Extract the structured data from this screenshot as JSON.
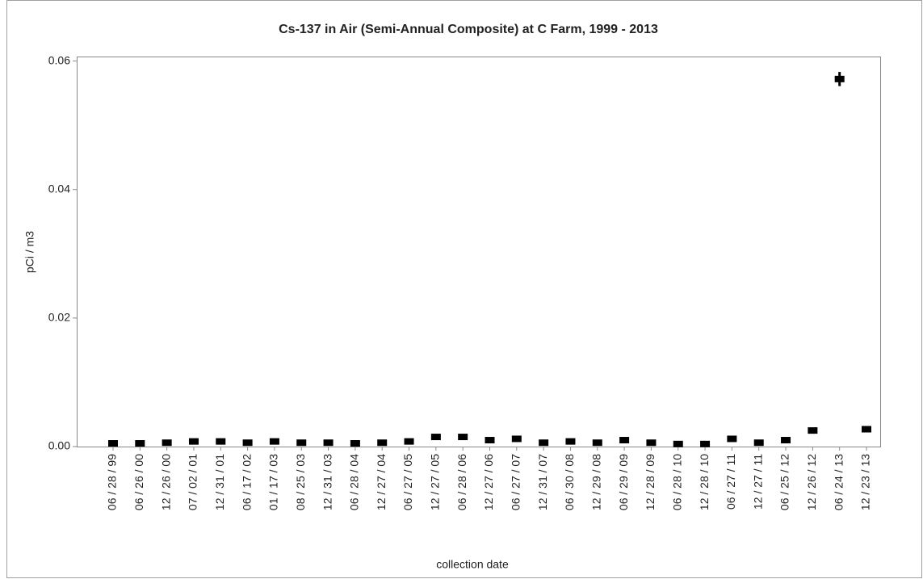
{
  "chart_data": {
    "type": "scatter",
    "title": "Cs-137 in Air (Semi-Annual Composite) at C Farm, 1999 - 2013",
    "x_label": "collection date",
    "y_label": "pCi / m3",
    "categories": [
      "06 / 28 / 99",
      "06 / 26 / 00",
      "12 / 26 / 00",
      "07 / 02 / 01",
      "12 / 31 / 01",
      "06 / 17 / 02",
      "01 / 17 / 03",
      "08 / 25 / 03",
      "12 / 31 / 03",
      "06 / 28 / 04",
      "12 / 27 / 04",
      "06 / 27 / 05",
      "12 / 27 / 05",
      "06 / 28 / 06",
      "12 / 27 / 06",
      "06 / 27 / 07",
      "12 / 31 / 07",
      "06 / 30 / 08",
      "12 / 29 / 08",
      "06 / 29 / 09",
      "12 / 28 / 09",
      "06 / 28 / 10",
      "12 / 28 / 10",
      "06 / 27 / 11",
      "12 / 27 / 11",
      "06 / 25 / 12",
      "12 / 26 / 12",
      "06 / 24 / 13",
      "12 / 23 / 13"
    ],
    "values": [
      0.0005,
      0.0005,
      0.0006,
      0.0008,
      0.0008,
      0.0006,
      0.0008,
      0.0006,
      0.0006,
      0.0005,
      0.0006,
      0.0008,
      0.0015,
      0.0015,
      0.001,
      0.0012,
      0.0006,
      0.0008,
      0.0006,
      0.001,
      0.0006,
      0.0004,
      0.0004,
      0.0012,
      0.0006,
      0.001,
      0.0025,
      0.0572,
      0.0027
    ],
    "errors": [
      null,
      null,
      null,
      null,
      null,
      null,
      null,
      null,
      null,
      null,
      null,
      null,
      null,
      null,
      null,
      null,
      null,
      null,
      null,
      null,
      null,
      null,
      null,
      null,
      null,
      null,
      null,
      0.0011,
      null
    ],
    "color": "#000000",
    "ylim": [
      0,
      0.0607
    ],
    "yticks": [
      {
        "value": 0,
        "label": "0.00"
      },
      0.02,
      0.04,
      0.06
    ],
    "grid": false
  }
}
